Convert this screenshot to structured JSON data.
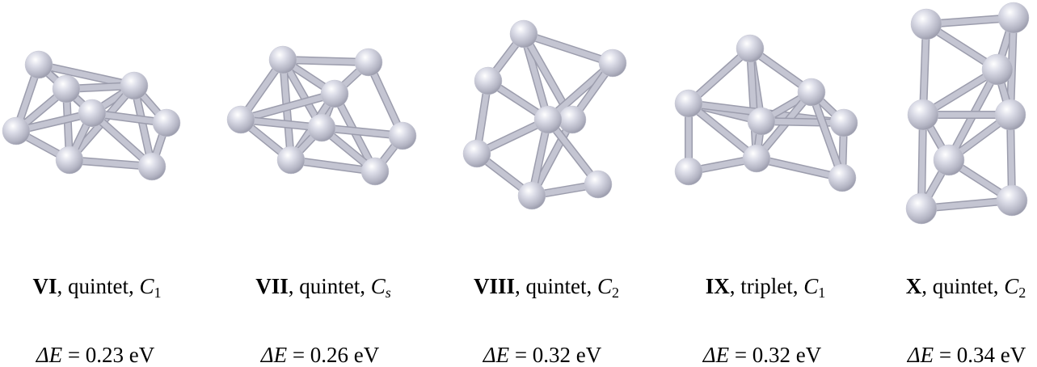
{
  "atom_color": "#c8c9d6",
  "bond_color": "#c4c5d2",
  "clusters": [
    {
      "id": "VI",
      "multiplicity": "quintet",
      "symmetry": "C",
      "symmetry_sub": "1",
      "sub_italic": false,
      "energy_label": "ΔE",
      "energy_value": "= 0.23 eV"
    },
    {
      "id": "VII",
      "multiplicity": "quintet",
      "symmetry": "C",
      "symmetry_sub": "s",
      "sub_italic": true,
      "energy_label": "ΔE",
      "energy_value": "= 0.26 eV"
    },
    {
      "id": "VIII",
      "multiplicity": "quintet",
      "symmetry": "C",
      "symmetry_sub": "2",
      "sub_italic": false,
      "energy_label": "ΔE",
      "energy_value": "= 0.32 eV"
    },
    {
      "id": "IX",
      "multiplicity": "triplet",
      "symmetry": "C",
      "symmetry_sub": "1",
      "sub_italic": false,
      "energy_label": "ΔE",
      "energy_value": "= 0.32 eV"
    },
    {
      "id": "X",
      "multiplicity": "quintet",
      "symmetry": "C",
      "symmetry_sub": "2",
      "sub_italic": false,
      "energy_label": "ΔE",
      "energy_value": "= 0.34 eV"
    }
  ]
}
